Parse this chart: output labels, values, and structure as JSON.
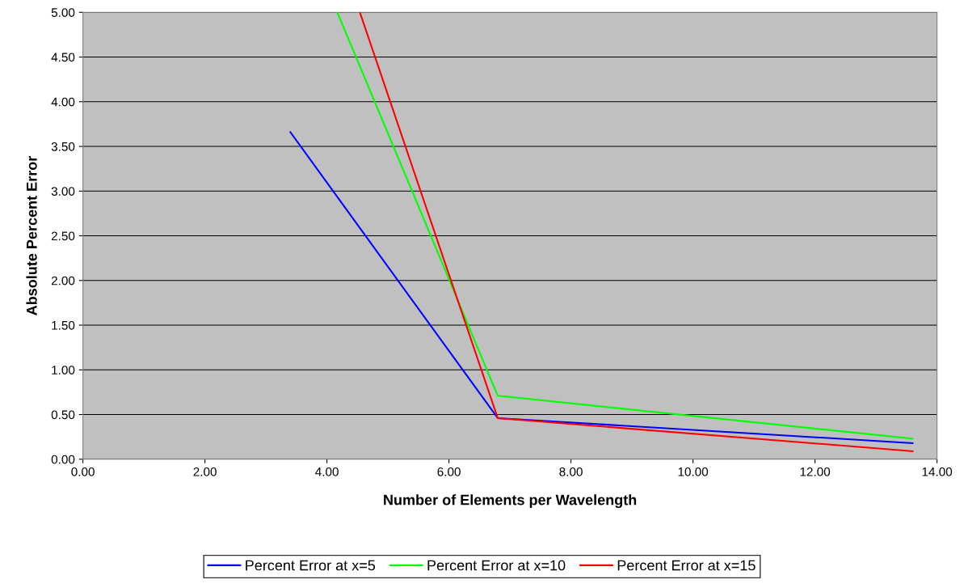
{
  "chart_data": {
    "type": "line",
    "xlabel": "Number of Elements per Wavelength",
    "ylabel": "Absolute Percent Error",
    "xlim": [
      0,
      14
    ],
    "xticks": [
      {
        "value": 0,
        "label": "0.00"
      },
      {
        "value": 2,
        "label": "2.00"
      },
      {
        "value": 4,
        "label": "4.00"
      },
      {
        "value": 6,
        "label": "6.00"
      },
      {
        "value": 8,
        "label": "8.00"
      },
      {
        "value": 10,
        "label": "10.00"
      },
      {
        "value": 12,
        "label": "12.00"
      },
      {
        "value": 14,
        "label": "14.00"
      }
    ],
    "ylim": [
      0,
      5
    ],
    "yticks": [
      {
        "value": 0,
        "label": "0.00"
      },
      {
        "value": 0.5,
        "label": "0.50"
      },
      {
        "value": 1,
        "label": "1.00"
      },
      {
        "value": 1.5,
        "label": "1.50"
      },
      {
        "value": 2,
        "label": "2.00"
      },
      {
        "value": 2.5,
        "label": "2.50"
      },
      {
        "value": 3,
        "label": "3.00"
      },
      {
        "value": 3.5,
        "label": "3.50"
      },
      {
        "value": 4,
        "label": "4.00"
      },
      {
        "value": 4.5,
        "label": "4.50"
      },
      {
        "value": 5,
        "label": "5.00"
      }
    ],
    "grid": "y",
    "legend": "bottom",
    "marker": "none",
    "line_style": "solid",
    "series": [
      {
        "name": "Percent Error at x=5",
        "color": "#0000ff",
        "x": [
          3.4,
          6.8,
          13.6
        ],
        "values": [
          3.66,
          0.46,
          0.18
        ]
      },
      {
        "name": "Percent Error at x=10",
        "color": "#00ff00",
        "x": [
          4.17,
          6.8,
          13.6
        ],
        "values": [
          5.0,
          0.71,
          0.23
        ]
      },
      {
        "name": "Percent Error at x=15",
        "color": "#ff0000",
        "x": [
          4.54,
          6.8,
          13.6
        ],
        "values": [
          5.0,
          0.46,
          0.09
        ]
      }
    ]
  }
}
